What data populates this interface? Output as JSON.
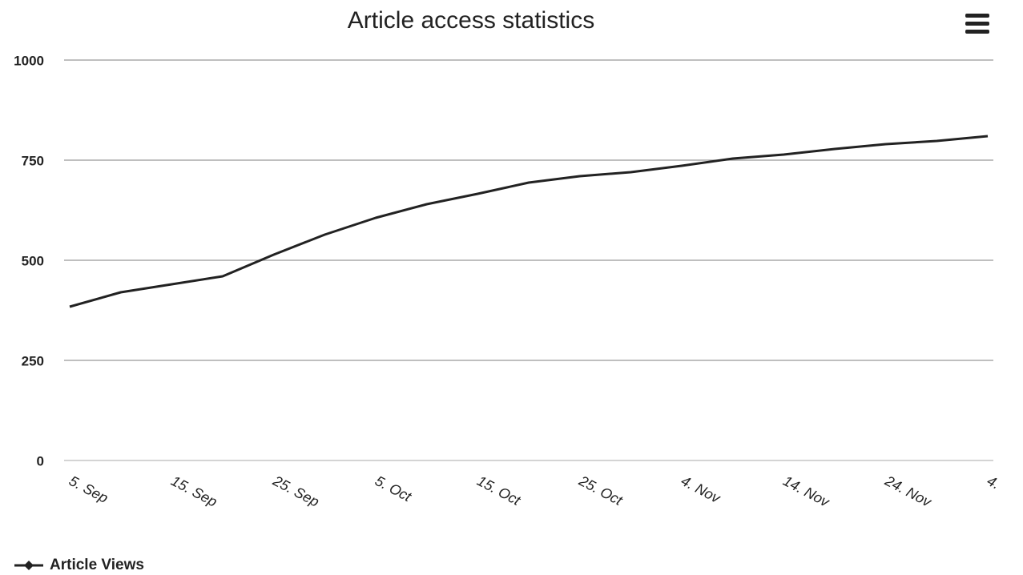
{
  "chart_data": {
    "type": "line",
    "title": "Article access statistics",
    "categories": [
      "5. Sep",
      null,
      "15. Sep",
      null,
      "25. Sep",
      null,
      "5. Oct",
      null,
      "15. Oct",
      null,
      "25. Oct",
      null,
      "4. Nov",
      null,
      "14. Nov",
      null,
      "24. Nov",
      null,
      "4."
    ],
    "series": [
      {
        "name": "Article Views",
        "color": "#222222",
        "values": [
          384,
          420,
          440,
          460,
          514,
          564,
          606,
          640,
          666,
          694,
          710,
          720,
          736,
          754,
          764,
          778,
          790,
          798,
          810
        ]
      }
    ],
    "ylim": [
      0,
      1000
    ],
    "yticks": [
      0,
      250,
      500,
      750,
      1000
    ],
    "grid": true,
    "legend": "bottom-left"
  }
}
